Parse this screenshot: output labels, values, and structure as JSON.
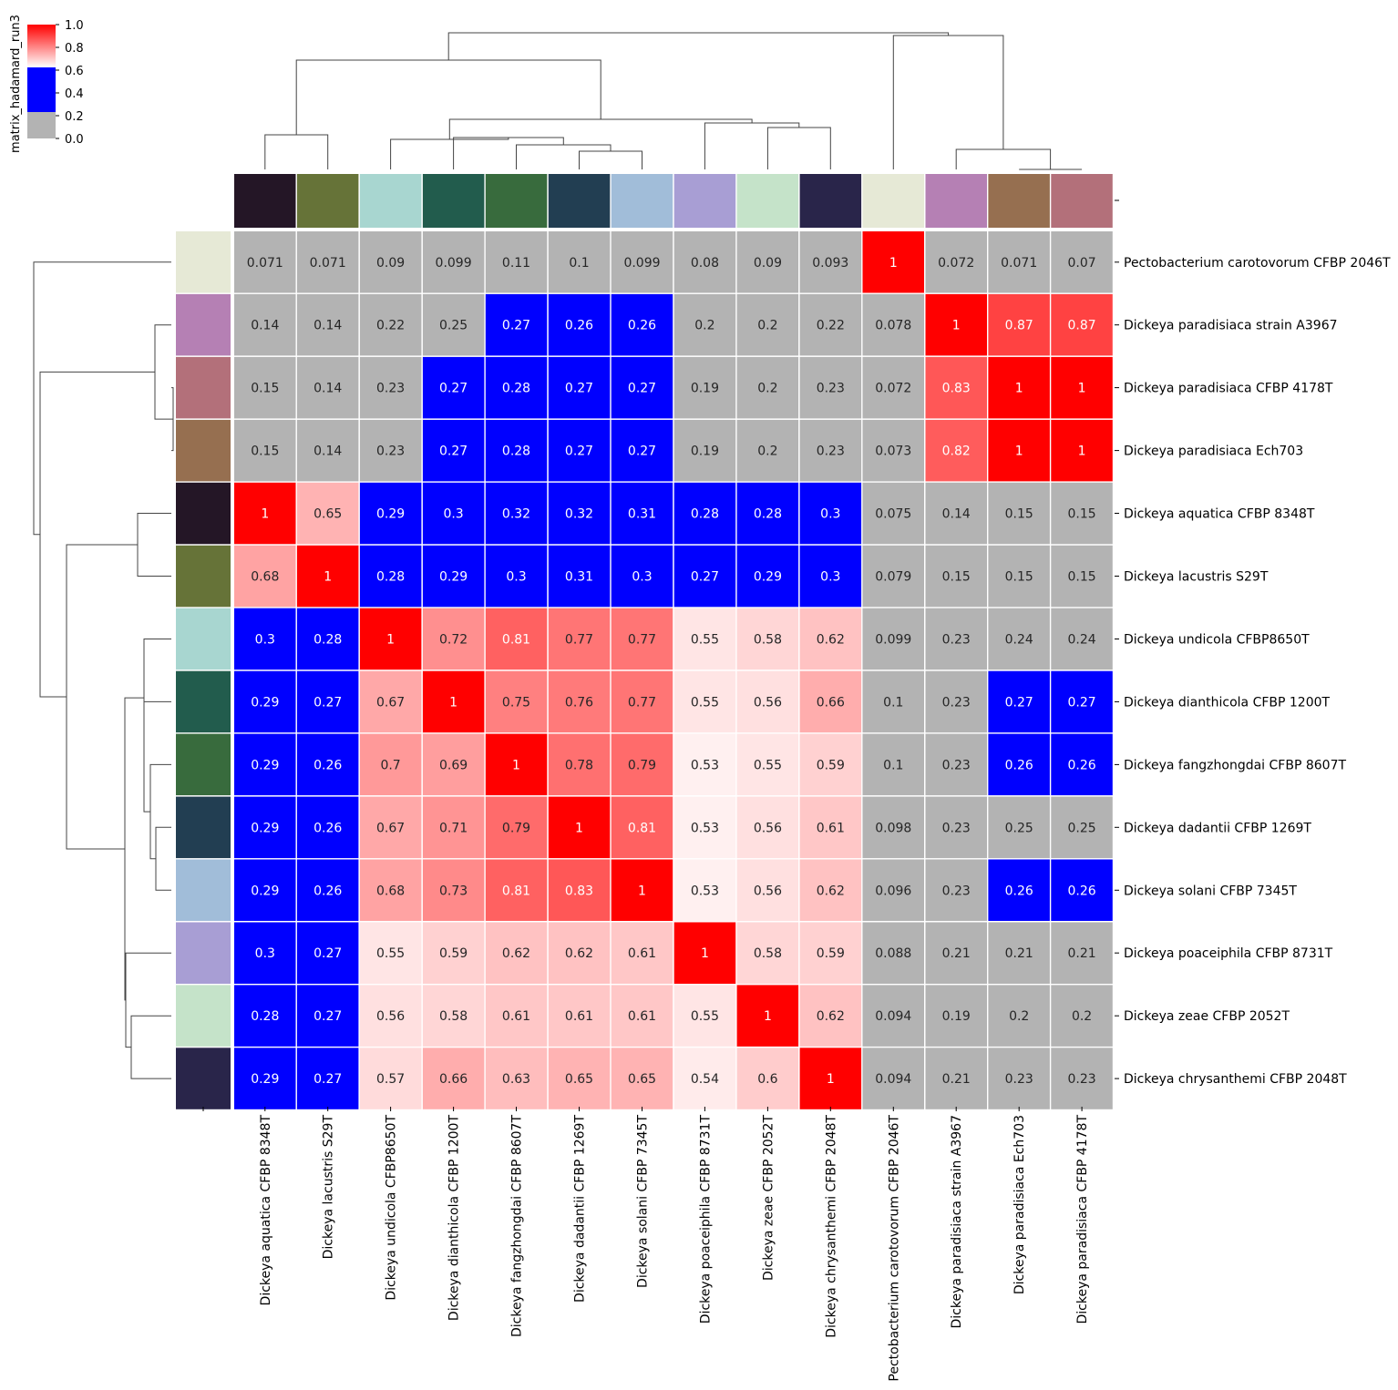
{
  "chart_data": {
    "type": "heatmap",
    "title": "",
    "colorbar": {
      "label": "matrix_hadamard_run3",
      "ticks": [
        "0.0",
        "0.2",
        "0.4",
        "0.6",
        "0.8",
        "1.0"
      ],
      "range": [
        0,
        1
      ],
      "bands": [
        {
          "from": 0.0,
          "to": 0.25,
          "color": "#b3b3b3"
        },
        {
          "from": 0.25,
          "to": 0.5,
          "color": "#0000ff"
        },
        {
          "from": 0.5,
          "to": 1.0,
          "gradient": [
            "#ffffff",
            "#ff0000"
          ]
        }
      ]
    },
    "rows": [
      "Pectobacterium carotovorum CFBP 2046T",
      "Dickeya paradisiaca strain A3967",
      "Dickeya paradisiaca CFBP 4178T",
      "Dickeya paradisiaca Ech703",
      "Dickeya aquatica CFBP 8348T",
      "Dickeya lacustris S29T",
      "Dickeya undicola CFBP8650T",
      "Dickeya dianthicola CFBP 1200T",
      "Dickeya fangzhongdai CFBP 8607T",
      "Dickeya dadantii CFBP 1269T",
      "Dickeya solani CFBP 7345T",
      "Dickeya poaceiphila CFBP 8731T",
      "Dickeya zeae CFBP 2052T",
      "Dickeya chrysanthemi CFBP 2048T"
    ],
    "columns": [
      "Dickeya aquatica CFBP 8348T",
      "Dickeya lacustris S29T",
      "Dickeya undicola CFBP8650T",
      "Dickeya dianthicola CFBP 1200T",
      "Dickeya fangzhongdai CFBP 8607T",
      "Dickeya dadantii CFBP 1269T",
      "Dickeya solani CFBP 7345T",
      "Dickeya poaceiphila CFBP 8731T",
      "Dickeya zeae CFBP 2052T",
      "Dickeya chrysanthemi CFBP 2048T",
      "Pectobacterium carotovorum CFBP 2046T",
      "Dickeya paradisiaca strain A3967",
      "Dickeya paradisiaca Ech703",
      "Dickeya paradisiaca CFBP 4178T"
    ],
    "values": [
      [
        "0.071",
        "0.071",
        "0.09",
        "0.099",
        "0.11",
        "0.1",
        "0.099",
        "0.08",
        "0.09",
        "0.093",
        "1",
        "0.072",
        "0.071",
        "0.07"
      ],
      [
        "0.14",
        "0.14",
        "0.22",
        "0.25",
        "0.27",
        "0.26",
        "0.26",
        "0.2",
        "0.2",
        "0.22",
        "0.078",
        "1",
        "0.87",
        "0.87"
      ],
      [
        "0.15",
        "0.14",
        "0.23",
        "0.27",
        "0.28",
        "0.27",
        "0.27",
        "0.19",
        "0.2",
        "0.23",
        "0.072",
        "0.83",
        "1",
        "1"
      ],
      [
        "0.15",
        "0.14",
        "0.23",
        "0.27",
        "0.28",
        "0.27",
        "0.27",
        "0.19",
        "0.2",
        "0.23",
        "0.073",
        "0.82",
        "1",
        "1"
      ],
      [
        "1",
        "0.65",
        "0.29",
        "0.3",
        "0.32",
        "0.32",
        "0.31",
        "0.28",
        "0.28",
        "0.3",
        "0.075",
        "0.14",
        "0.15",
        "0.15"
      ],
      [
        "0.68",
        "1",
        "0.28",
        "0.29",
        "0.3",
        "0.31",
        "0.3",
        "0.27",
        "0.29",
        "0.3",
        "0.079",
        "0.15",
        "0.15",
        "0.15"
      ],
      [
        "0.3",
        "0.28",
        "1",
        "0.72",
        "0.81",
        "0.77",
        "0.77",
        "0.55",
        "0.58",
        "0.62",
        "0.099",
        "0.23",
        "0.24",
        "0.24"
      ],
      [
        "0.29",
        "0.27",
        "0.67",
        "1",
        "0.75",
        "0.76",
        "0.77",
        "0.55",
        "0.56",
        "0.66",
        "0.1",
        "0.23",
        "0.27",
        "0.27"
      ],
      [
        "0.29",
        "0.26",
        "0.7",
        "0.69",
        "1",
        "0.78",
        "0.79",
        "0.53",
        "0.55",
        "0.59",
        "0.1",
        "0.23",
        "0.26",
        "0.26"
      ],
      [
        "0.29",
        "0.26",
        "0.67",
        "0.71",
        "0.79",
        "1",
        "0.81",
        "0.53",
        "0.56",
        "0.61",
        "0.098",
        "0.23",
        "0.25",
        "0.25"
      ],
      [
        "0.29",
        "0.26",
        "0.68",
        "0.73",
        "0.81",
        "0.83",
        "1",
        "0.53",
        "0.56",
        "0.62",
        "0.096",
        "0.23",
        "0.26",
        "0.26"
      ],
      [
        "0.3",
        "0.27",
        "0.55",
        "0.59",
        "0.62",
        "0.62",
        "0.61",
        "1",
        "0.58",
        "0.59",
        "0.088",
        "0.21",
        "0.21",
        "0.21"
      ],
      [
        "0.28",
        "0.27",
        "0.56",
        "0.58",
        "0.61",
        "0.61",
        "0.61",
        "0.55",
        "1",
        "0.62",
        "0.094",
        "0.19",
        "0.2",
        "0.2"
      ],
      [
        "0.29",
        "0.27",
        "0.57",
        "0.66",
        "0.63",
        "0.65",
        "0.65",
        "0.54",
        "0.6",
        "1",
        "0.094",
        "0.21",
        "0.23",
        "0.23"
      ]
    ],
    "column_colors": [
      "#241626",
      "#667338",
      "#a8d6d0",
      "#225c4d",
      "#386b3d",
      "#223e52",
      "#a1bdd9",
      "#a89ed4",
      "#c5e3c9",
      "#29254a",
      "#e6e9d6",
      "#b580b4",
      "#966f50",
      "#b3707a"
    ],
    "row_colors": [
      "#e6e9d6",
      "#b580b4",
      "#b3707a",
      "#966f50",
      "#241626",
      "#667338",
      "#a8d6d0",
      "#225c4d",
      "#386b3d",
      "#223e52",
      "#a1bdd9",
      "#a89ed4",
      "#c5e3c9",
      "#29254a"
    ]
  }
}
